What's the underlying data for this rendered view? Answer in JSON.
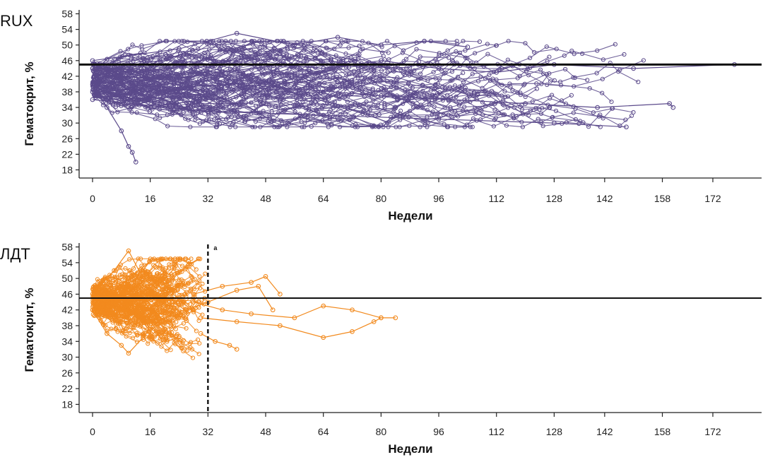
{
  "chart_data": [
    {
      "type": "line",
      "panel_label": "RUX",
      "ylabel": "Гематокрит, %",
      "xlabel": "Недели",
      "y_ticks": [
        18,
        22,
        26,
        30,
        34,
        38,
        42,
        46,
        50,
        54,
        58
      ],
      "x_ticks": [
        0,
        16,
        32,
        48,
        64,
        80,
        96,
        112,
        128,
        142,
        158,
        172
      ],
      "ylim": [
        17,
        59
      ],
      "xlim": [
        -4,
        186
      ],
      "reference_line": 45,
      "color": "#5b4a8b",
      "spaghetti": {
        "description_free": true,
        "n_patients": 110,
        "max_week": 178,
        "center": 41,
        "spread": 4.5
      },
      "highlight_series": [
        {
          "name": "p-long-1",
          "x": [
            0,
            8,
            20,
            36,
            52,
            64,
            80,
            96,
            112,
            128,
            150,
            178
          ],
          "y": [
            44,
            42,
            41,
            43,
            45,
            44,
            46,
            44,
            43,
            45,
            44,
            45
          ]
        },
        {
          "name": "p-low-1",
          "x": [
            0,
            4,
            8,
            10,
            11,
            12
          ],
          "y": [
            40,
            34,
            28,
            24,
            22.5,
            20
          ]
        },
        {
          "name": "p-high-1",
          "x": [
            0,
            24,
            40,
            56,
            68,
            80,
            92,
            104
          ],
          "y": [
            46,
            49,
            53,
            50,
            52,
            50,
            51,
            49.5
          ]
        },
        {
          "name": "p-late-1",
          "x": [
            0,
            40,
            80,
            120,
            140,
            160,
            161
          ],
          "y": [
            38,
            40,
            37,
            35,
            34,
            35,
            34
          ]
        },
        {
          "name": "p-late-2",
          "x": [
            0,
            32,
            64,
            96,
            128,
            148
          ],
          "y": [
            36,
            33,
            32,
            31,
            30,
            29
          ]
        }
      ]
    },
    {
      "type": "line",
      "panel_label": "ЛДТ",
      "ylabel": "Гематокрит, %",
      "xlabel": "Недели",
      "y_ticks": [
        18,
        22,
        26,
        30,
        34,
        38,
        42,
        46,
        50,
        54,
        58
      ],
      "x_ticks": [
        0,
        16,
        32,
        48,
        64,
        80,
        96,
        112,
        128,
        142,
        158,
        172
      ],
      "ylim": [
        17,
        59
      ],
      "xlim": [
        -4,
        186
      ],
      "reference_line": 45,
      "vertical_marker": 32,
      "vertical_marker_label": "a",
      "color": "#f28a1e",
      "spaghetti": {
        "n_patients": 110,
        "max_week": 32,
        "center": 44.5,
        "spread": 4
      },
      "highlight_series": [
        {
          "name": "p-ext-1",
          "x": [
            28,
            36,
            44,
            56,
            64,
            72,
            80,
            84
          ],
          "y": [
            44,
            42,
            41,
            40,
            43,
            42,
            40,
            40
          ]
        },
        {
          "name": "p-ext-2",
          "x": [
            30,
            40,
            52,
            64,
            72,
            78,
            80
          ],
          "y": [
            40,
            39,
            38,
            35,
            36.5,
            39,
            40
          ]
        },
        {
          "name": "p-ext-3",
          "x": [
            28,
            36,
            44,
            48,
            52
          ],
          "y": [
            46,
            48,
            49,
            50.5,
            46
          ]
        },
        {
          "name": "p-ext-4",
          "x": [
            30,
            34,
            38,
            40
          ],
          "y": [
            36,
            34,
            33,
            32
          ]
        },
        {
          "name": "p-ext-5",
          "x": [
            26,
            32,
            40,
            46,
            50
          ],
          "y": [
            42,
            44,
            47,
            48,
            42
          ]
        },
        {
          "name": "p-peak-1",
          "x": [
            0,
            6,
            10,
            14,
            20
          ],
          "y": [
            46,
            52,
            57,
            50,
            46
          ]
        },
        {
          "name": "p-low-1",
          "x": [
            0,
            4,
            8,
            10,
            14
          ],
          "y": [
            42,
            36,
            33,
            31,
            35
          ]
        }
      ]
    }
  ]
}
